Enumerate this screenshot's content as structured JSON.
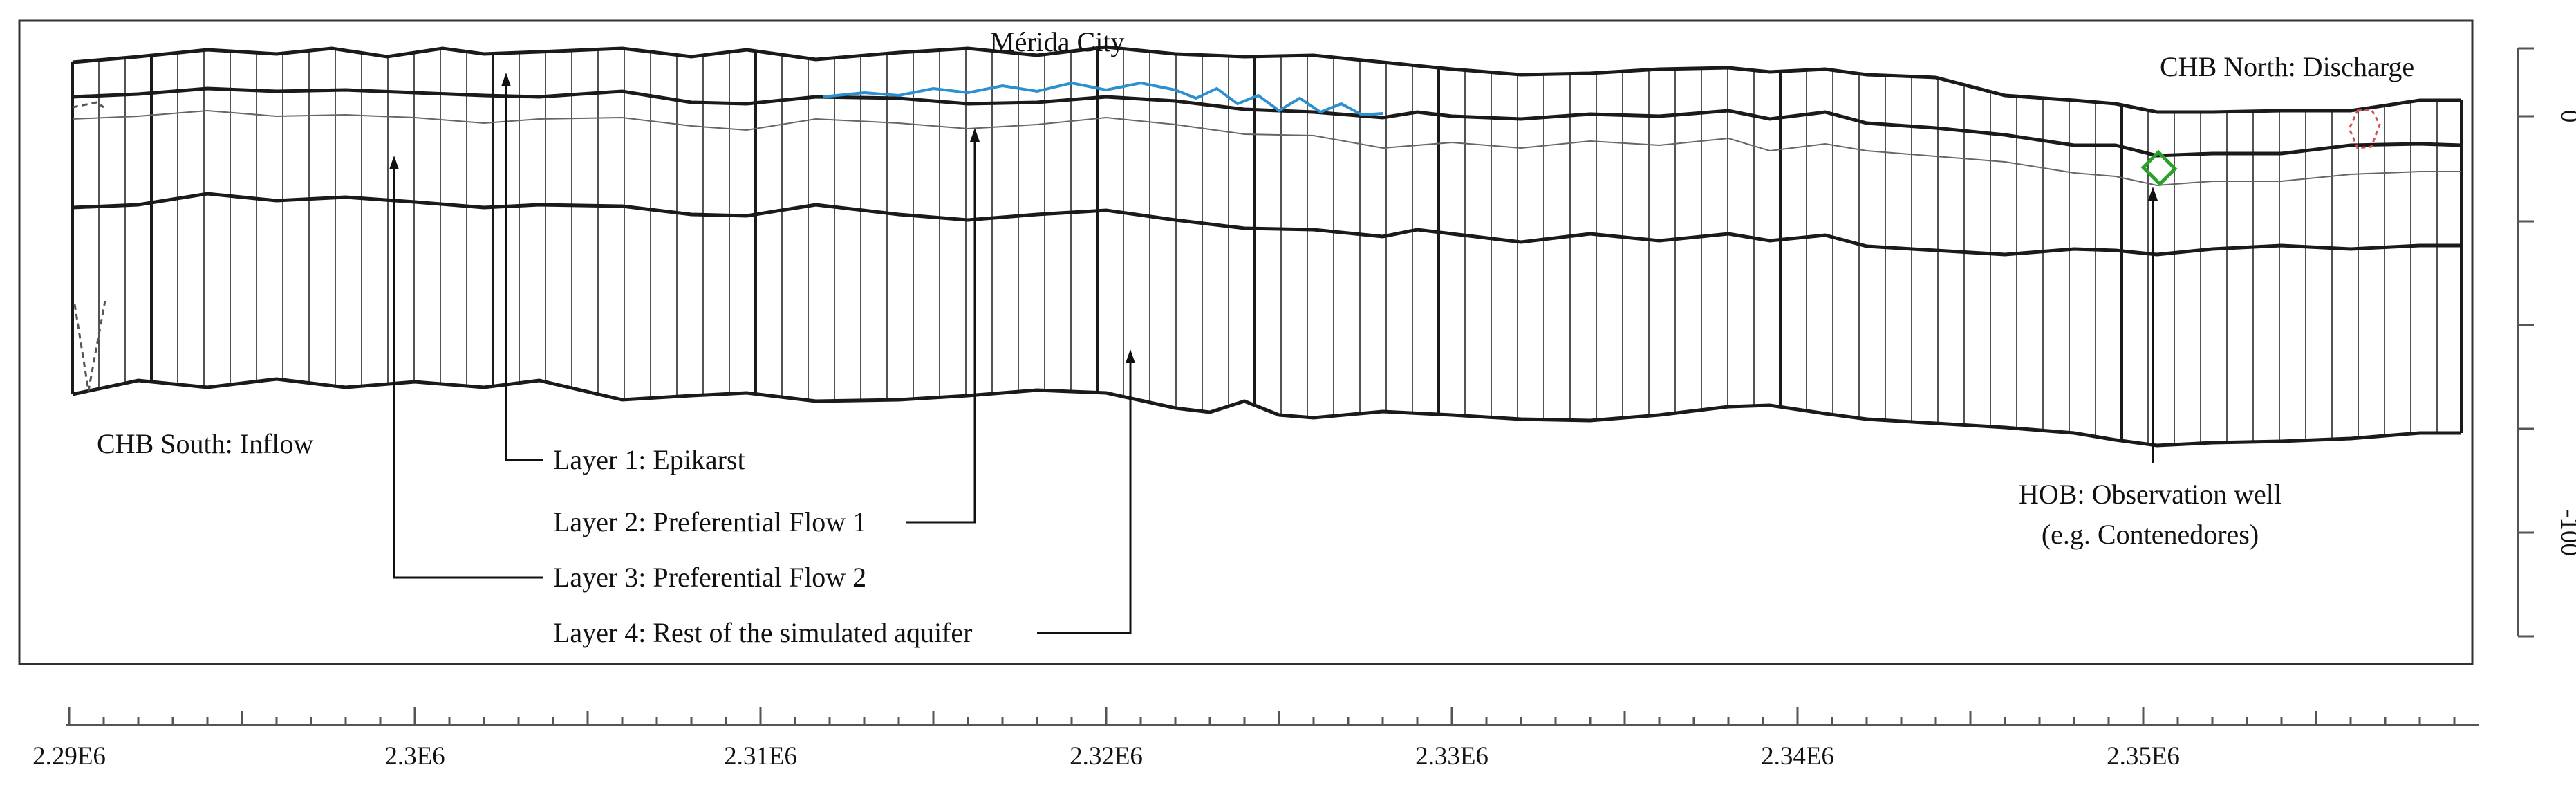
{
  "diagram": {
    "title": "Mérida City",
    "boundary_north": "CHB North: Discharge",
    "boundary_south": "CHB South: Inflow",
    "layers": [
      "Layer 1: Epikarst",
      "Layer 2: Preferential Flow 1",
      "Layer 3: Preferential Flow 2",
      "Layer 4: Rest of the simulated aquifer"
    ],
    "observation_well": {
      "line1": "HOB: Observation well",
      "line2": "(e.g. Contenedores)"
    },
    "colors": {
      "river": "#2b8fd0",
      "well_marker": "#2aa22a",
      "chb_marker": "#d05050",
      "grid": "#1a1a1a"
    }
  },
  "axes": {
    "x_ticks": [
      "2.29E6",
      "2.3E6",
      "2.31E6",
      "2.32E6",
      "2.33E6",
      "2.34E6",
      "2.35E6"
    ],
    "y_ticks": [
      "0",
      "-100"
    ]
  }
}
